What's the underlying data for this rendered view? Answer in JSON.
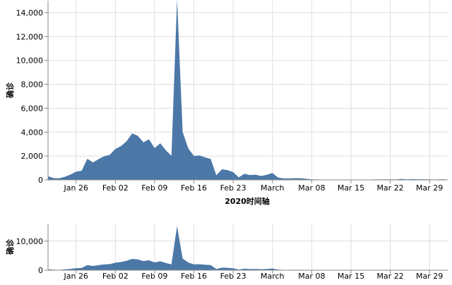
{
  "chart_data": [
    {
      "type": "area",
      "color": "#4c78a8",
      "grid": true,
      "x_title": "2020时间轴",
      "y_title": "确诊",
      "xlim": [
        "2020-01-21",
        "2020-04-01"
      ],
      "ylim": [
        0,
        15000
      ],
      "yticks": [
        0,
        {
          "value": 2000,
          "label": "2,000"
        },
        {
          "value": 4000,
          "label": "4,000"
        },
        {
          "value": 6000,
          "label": "6,000"
        },
        {
          "value": 8000,
          "label": "8,000"
        },
        {
          "value": 10000,
          "label": "10,000"
        },
        {
          "value": 12000,
          "label": "12,000"
        },
        {
          "value": 14000,
          "label": "14,000"
        }
      ],
      "xticks": [
        {
          "value": "2020-01-26",
          "label": "Jan 26"
        },
        {
          "value": "2020-02-02",
          "label": "Feb 02"
        },
        {
          "value": "2020-02-09",
          "label": "Feb 09"
        },
        {
          "value": "2020-02-16",
          "label": "Feb 16"
        },
        {
          "value": "2020-02-23",
          "label": "Feb 23"
        },
        {
          "value": "2020-03-01",
          "label": "March"
        },
        {
          "value": "2020-03-08",
          "label": "Mar 08"
        },
        {
          "value": "2020-03-15",
          "label": "Mar 15"
        },
        {
          "value": "2020-03-22",
          "label": "Mar 22"
        },
        {
          "value": "2020-03-29",
          "label": "Mar 29"
        }
      ],
      "x": [
        "2020-01-21",
        "2020-01-22",
        "2020-01-23",
        "2020-01-24",
        "2020-01-25",
        "2020-01-26",
        "2020-01-27",
        "2020-01-28",
        "2020-01-29",
        "2020-01-30",
        "2020-01-31",
        "2020-02-01",
        "2020-02-02",
        "2020-02-03",
        "2020-02-04",
        "2020-02-05",
        "2020-02-06",
        "2020-02-07",
        "2020-02-08",
        "2020-02-09",
        "2020-02-10",
        "2020-02-11",
        "2020-02-12",
        "2020-02-13",
        "2020-02-14",
        "2020-02-15",
        "2020-02-16",
        "2020-02-17",
        "2020-02-18",
        "2020-02-19",
        "2020-02-20",
        "2020-02-21",
        "2020-02-22",
        "2020-02-23",
        "2020-02-24",
        "2020-02-25",
        "2020-02-26",
        "2020-02-27",
        "2020-02-28",
        "2020-02-29",
        "2020-03-01",
        "2020-03-02",
        "2020-03-03",
        "2020-03-04",
        "2020-03-05",
        "2020-03-06",
        "2020-03-07",
        "2020-03-08",
        "2020-03-09",
        "2020-03-10",
        "2020-03-11",
        "2020-03-12",
        "2020-03-13",
        "2020-03-14",
        "2020-03-15",
        "2020-03-16",
        "2020-03-17",
        "2020-03-18",
        "2020-03-19",
        "2020-03-20",
        "2020-03-21",
        "2020-03-22",
        "2020-03-23",
        "2020-03-24",
        "2020-03-25",
        "2020-03-26",
        "2020-03-27",
        "2020-03-28",
        "2020-03-29",
        "2020-03-30",
        "2020-03-31",
        "2020-04-01"
      ],
      "values": [
        300,
        150,
        131,
        259,
        444,
        688,
        769,
        1771,
        1459,
        1737,
        1981,
        2099,
        2590,
        2829,
        3235,
        3887,
        3694,
        3143,
        3399,
        2656,
        3062,
        2478,
        2015,
        15152,
        4000,
        2641,
        2009,
        2048,
        1886,
        1749,
        394,
        889,
        823,
        648,
        214,
        508,
        406,
        433,
        327,
        427,
        573,
        202,
        125,
        119,
        139,
        143,
        99,
        44,
        40,
        19,
        24,
        15,
        8,
        11,
        20,
        16,
        21,
        13,
        34,
        39,
        41,
        46,
        39,
        78,
        47,
        67,
        55,
        54,
        45,
        31,
        48,
        36
      ]
    },
    {
      "type": "area",
      "color": "#4c78a8",
      "grid": true,
      "y_title": "确诊",
      "xlim": [
        "2020-01-21",
        "2020-04-01"
      ],
      "ylim": [
        0,
        16000
      ],
      "yticks": [
        0,
        {
          "value": 10000,
          "label": "10,000"
        }
      ],
      "xticks": [
        {
          "value": "2020-01-26",
          "label": "Jan 26"
        },
        {
          "value": "2020-02-02",
          "label": "Feb 02"
        },
        {
          "value": "2020-02-09",
          "label": "Feb 09"
        },
        {
          "value": "2020-02-16",
          "label": "Feb 16"
        },
        {
          "value": "2020-02-23",
          "label": "Feb 23"
        },
        {
          "value": "2020-03-01",
          "label": "March"
        },
        {
          "value": "2020-03-08",
          "label": "Mar 08"
        },
        {
          "value": "2020-03-15",
          "label": "Mar 15"
        },
        {
          "value": "2020-03-22",
          "label": "Mar 22"
        },
        {
          "value": "2020-03-29",
          "label": "Mar 29"
        }
      ],
      "x": [
        "2020-01-21",
        "2020-01-22",
        "2020-01-23",
        "2020-01-24",
        "2020-01-25",
        "2020-01-26",
        "2020-01-27",
        "2020-01-28",
        "2020-01-29",
        "2020-01-30",
        "2020-01-31",
        "2020-02-01",
        "2020-02-02",
        "2020-02-03",
        "2020-02-04",
        "2020-02-05",
        "2020-02-06",
        "2020-02-07",
        "2020-02-08",
        "2020-02-09",
        "2020-02-10",
        "2020-02-11",
        "2020-02-12",
        "2020-02-13",
        "2020-02-14",
        "2020-02-15",
        "2020-02-16",
        "2020-02-17",
        "2020-02-18",
        "2020-02-19",
        "2020-02-20",
        "2020-02-21",
        "2020-02-22",
        "2020-02-23",
        "2020-02-24",
        "2020-02-25",
        "2020-02-26",
        "2020-02-27",
        "2020-02-28",
        "2020-02-29",
        "2020-03-01",
        "2020-03-02",
        "2020-03-03",
        "2020-03-04",
        "2020-03-05",
        "2020-03-06",
        "2020-03-07",
        "2020-03-08",
        "2020-03-09",
        "2020-03-10",
        "2020-03-11",
        "2020-03-12",
        "2020-03-13",
        "2020-03-14",
        "2020-03-15",
        "2020-03-16",
        "2020-03-17",
        "2020-03-18",
        "2020-03-19",
        "2020-03-20",
        "2020-03-21",
        "2020-03-22",
        "2020-03-23",
        "2020-03-24",
        "2020-03-25",
        "2020-03-26",
        "2020-03-27",
        "2020-03-28",
        "2020-03-29",
        "2020-03-30",
        "2020-03-31",
        "2020-04-01"
      ],
      "values": [
        300,
        150,
        131,
        259,
        444,
        688,
        769,
        1771,
        1459,
        1737,
        1981,
        2099,
        2590,
        2829,
        3235,
        3887,
        3694,
        3143,
        3399,
        2656,
        3062,
        2478,
        2015,
        15152,
        4000,
        2641,
        2009,
        2048,
        1886,
        1749,
        394,
        889,
        823,
        648,
        214,
        508,
        406,
        433,
        327,
        427,
        573,
        202,
        125,
        119,
        139,
        143,
        99,
        44,
        40,
        19,
        24,
        15,
        8,
        11,
        20,
        16,
        21,
        13,
        34,
        39,
        41,
        46,
        39,
        78,
        47,
        67,
        55,
        54,
        45,
        31,
        48,
        36
      ]
    }
  ]
}
